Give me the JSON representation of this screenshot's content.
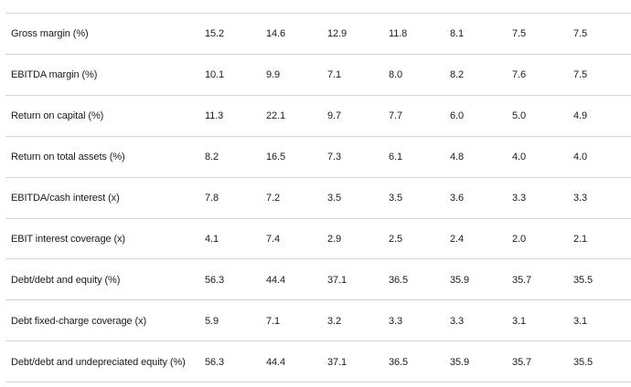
{
  "table": {
    "rows": [
      [
        "Gross margin (%)",
        "15.2",
        "14.6",
        "12.9",
        "11.8",
        "8.1",
        "7.5",
        "7.5"
      ],
      [
        "EBITDA margin (%)",
        "10.1",
        "9.9",
        "7.1",
        "8.0",
        "8.2",
        "7.6",
        "7.5"
      ],
      [
        "Return on capital (%)",
        "11.3",
        "22.1",
        "9.7",
        "7.7",
        "6.0",
        "5.0",
        "4.9"
      ],
      [
        "Return on total assets (%)",
        "8.2",
        "16.5",
        "7.3",
        "6.1",
        "4.8",
        "4.0",
        "4.0"
      ],
      [
        "EBITDA/cash interest (x)",
        "7.8",
        "7.2",
        "3.5",
        "3.5",
        "3.6",
        "3.3",
        "3.3"
      ],
      [
        "EBIT interest coverage (x)",
        "4.1",
        "7.4",
        "2.9",
        "2.5",
        "2.4",
        "2.0",
        "2.1"
      ],
      [
        "Debt/debt and equity (%)",
        "56.3",
        "44.4",
        "37.1",
        "36.5",
        "35.9",
        "35.7",
        "35.5"
      ],
      [
        "Debt fixed-charge coverage (x)",
        "5.9",
        "7.1",
        "3.2",
        "3.3",
        "3.3",
        "3.1",
        "3.1"
      ],
      [
        "Debt/debt and undepreciated equity (%)",
        "56.3",
        "44.4",
        "37.1",
        "36.5",
        "35.9",
        "35.7",
        "35.5"
      ]
    ]
  }
}
